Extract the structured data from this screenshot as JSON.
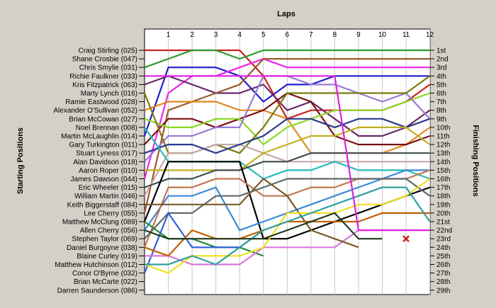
{
  "chart_data": {
    "type": "line",
    "title": "",
    "xlabel": "Laps",
    "ylabel_left": "Starting Positions",
    "ylabel_right": "Finishing Positions",
    "laps": [
      1,
      2,
      3,
      4,
      5,
      6,
      7,
      8,
      9,
      10,
      11,
      12
    ],
    "drivers": [
      "Craig Stirling (025)",
      "Shane Crosbie (047)",
      "Chris Smylie (031)",
      "Richie Faulkner (033)",
      "Kris Fitzpatrick (063)",
      "Marty Lynch (016)",
      "Ramie Eastwood (028)",
      "Alexander O'Sullivan (052)",
      "Brian McCowan (027)",
      "Noel Brennan (008)",
      "Martin McLaughlin (014)",
      "Gary Turkington (011)",
      "Stuart Lyness (017)",
      "Alan Davidson (018)",
      "Aaron Roper (010)",
      "James Dawson (044)",
      "Eric Wheeler (015)",
      "William Martin (046)",
      "Keith Biggerstaff (084)",
      "Lee Cherry (055)",
      "Matthew McClung (089)",
      "Allen Cherry (056)",
      "Stephen Taylor (069)",
      "Daniel Burgoyne (038)",
      "Blaine Curley (019)",
      "Matthew Hutchinson (012)",
      "Conor O'Byrne (032)",
      "Brian McCarte (022)",
      "Darren Saunderson (086)"
    ],
    "finishing_labels": [
      "1st",
      "2nd",
      "3rd",
      "4th",
      "5th",
      "6th",
      "7th",
      "8th",
      "9th",
      "10th",
      "11th",
      "12th",
      "13th",
      "14th",
      "15th",
      "16th",
      "17th",
      "18th",
      "19th",
      "20th",
      "21st",
      "22nd",
      "23rd",
      "24th",
      "25th",
      "26th",
      "27th",
      "28th",
      "29th"
    ],
    "series": [
      {
        "color": "#cc2222",
        "positions": [
          1,
          1,
          1,
          1,
          1,
          4,
          9,
          8,
          8,
          8,
          8,
          7,
          5
        ]
      },
      {
        "color": "#2e9a2e",
        "positions": [
          3,
          2,
          1,
          1,
          2,
          1,
          1,
          1,
          1,
          1,
          1,
          1,
          1
        ]
      },
      {
        "color": "#1e1ecc",
        "positions": [
          11,
          3,
          3,
          3,
          4,
          7,
          5,
          5,
          4,
          4,
          4,
          4,
          4
        ]
      },
      {
        "color": "#ee22ee",
        "positions": [
          16,
          6,
          4,
          4,
          3,
          2,
          3,
          3,
          3,
          3,
          3,
          3,
          3
        ]
      },
      {
        "color": "#6a2a6a",
        "positions": [
          5,
          4,
          5,
          6,
          6,
          5,
          8,
          7,
          9,
          11,
          11,
          10,
          8
        ]
      },
      {
        "color": "#9a5a2a",
        "positions": [
          20,
          8,
          7,
          6,
          5,
          2,
          2,
          2,
          2,
          2,
          2,
          2,
          2
        ]
      },
      {
        "color": "#e08a20",
        "positions": [
          8,
          7,
          7,
          7,
          8,
          8,
          9,
          13,
          13,
          13,
          13,
          12,
          10
        ]
      },
      {
        "color": "#7a1010",
        "positions": [
          12,
          9,
          9,
          10,
          9,
          8,
          6,
          7,
          11,
          12,
          12,
          12,
          11
        ]
      },
      {
        "color": "#8ad820",
        "positions": [
          9,
          10,
          10,
          9,
          9,
          12,
          10,
          9,
          8,
          8,
          8,
          7,
          6
        ]
      },
      {
        "color": "#9a7ad8",
        "positions": [
          14,
          11,
          11,
          10,
          10,
          4,
          4,
          5,
          5,
          6,
          7,
          6,
          9
        ]
      },
      {
        "color": "#7a7a10",
        "positions": [
          6,
          13,
          13,
          12,
          13,
          10,
          6,
          6,
          6,
          6,
          6,
          6,
          4
        ]
      },
      {
        "color": "#c8a8a8",
        "positions": [
          18,
          13,
          13,
          12,
          12,
          13,
          14,
          14,
          14,
          14,
          14,
          14,
          14
        ]
      },
      {
        "color": "#2a3a8a",
        "positions": [
          13,
          12,
          12,
          13,
          12,
          11,
          9,
          9,
          10,
          9,
          9,
          10,
          9
        ]
      },
      {
        "color": "#2abbbb",
        "positions": [
          10,
          14,
          14,
          14,
          14,
          16,
          15,
          15,
          14,
          15,
          15,
          15,
          16
        ]
      },
      {
        "color": "#c0b020",
        "positions": [
          15,
          15,
          15,
          15,
          15,
          13,
          12,
          11,
          11,
          10,
          10,
          10,
          12
        ]
      },
      {
        "color": "#404f4f",
        "positions": [
          17,
          16,
          16,
          15,
          15,
          14,
          14,
          13,
          13,
          13,
          13,
          13,
          13
        ]
      },
      {
        "color": "#000000",
        "positions": [
          21,
          14,
          14,
          14,
          14,
          23,
          23,
          22,
          21,
          20,
          19,
          18,
          17
        ]
      },
      {
        "color": "#3a8ad8",
        "positions": [
          22,
          18,
          18,
          17,
          22,
          21,
          20,
          19,
          18,
          17,
          16,
          15,
          15
        ]
      },
      {
        "color": "#c07850",
        "positions": [
          24,
          17,
          17,
          16,
          16,
          18,
          18,
          17,
          17,
          16,
          16,
          16,
          15
        ]
      },
      {
        "color": "#606a6a",
        "positions": [
          23,
          20,
          20,
          18,
          18,
          17,
          16,
          16,
          16,
          16,
          16,
          16,
          18
        ]
      },
      {
        "color": "#1e8a3a",
        "positions": [
          21,
          23,
          23,
          24,
          24,
          25
        ]
      },
      {
        "color": "#3060d8",
        "positions": [
          27,
          20,
          24,
          24,
          24,
          22
        ]
      },
      {
        "color": "#d878d8",
        "positions": [
          25,
          25,
          26,
          26,
          26,
          24,
          24,
          24,
          24,
          22,
          22
        ]
      },
      {
        "color": "#7a5a2a",
        "positions": [
          19,
          19,
          19,
          19,
          19,
          16,
          18,
          22,
          23,
          24
        ]
      },
      {
        "color": "#f0e020",
        "positions": [
          26,
          27,
          25,
          25,
          25,
          24,
          20,
          20,
          20,
          19,
          19,
          18,
          16
        ]
      },
      {
        "color": "#c06000",
        "positions": [
          24,
          25,
          22,
          23,
          23,
          22,
          21,
          21,
          21,
          21,
          20,
          20,
          20
        ]
      },
      {
        "color": "#30a0a0",
        "positions": [
          26,
          26,
          25,
          26,
          24,
          22,
          21,
          20,
          19,
          18,
          17,
          17,
          21
        ]
      },
      {
        "color": "#e020e0",
        "positions": [
          4,
          4,
          4,
          4,
          4,
          4,
          4,
          4,
          4,
          22,
          22,
          22,
          22
        ]
      },
      {
        "color": "#203a20",
        "positions": [
          22,
          23,
          23,
          23,
          23,
          23,
          22,
          21,
          20,
          23,
          23
        ]
      }
    ],
    "retired_marker": {
      "lap": 11,
      "position": 23,
      "color": "#cc2222"
    }
  }
}
